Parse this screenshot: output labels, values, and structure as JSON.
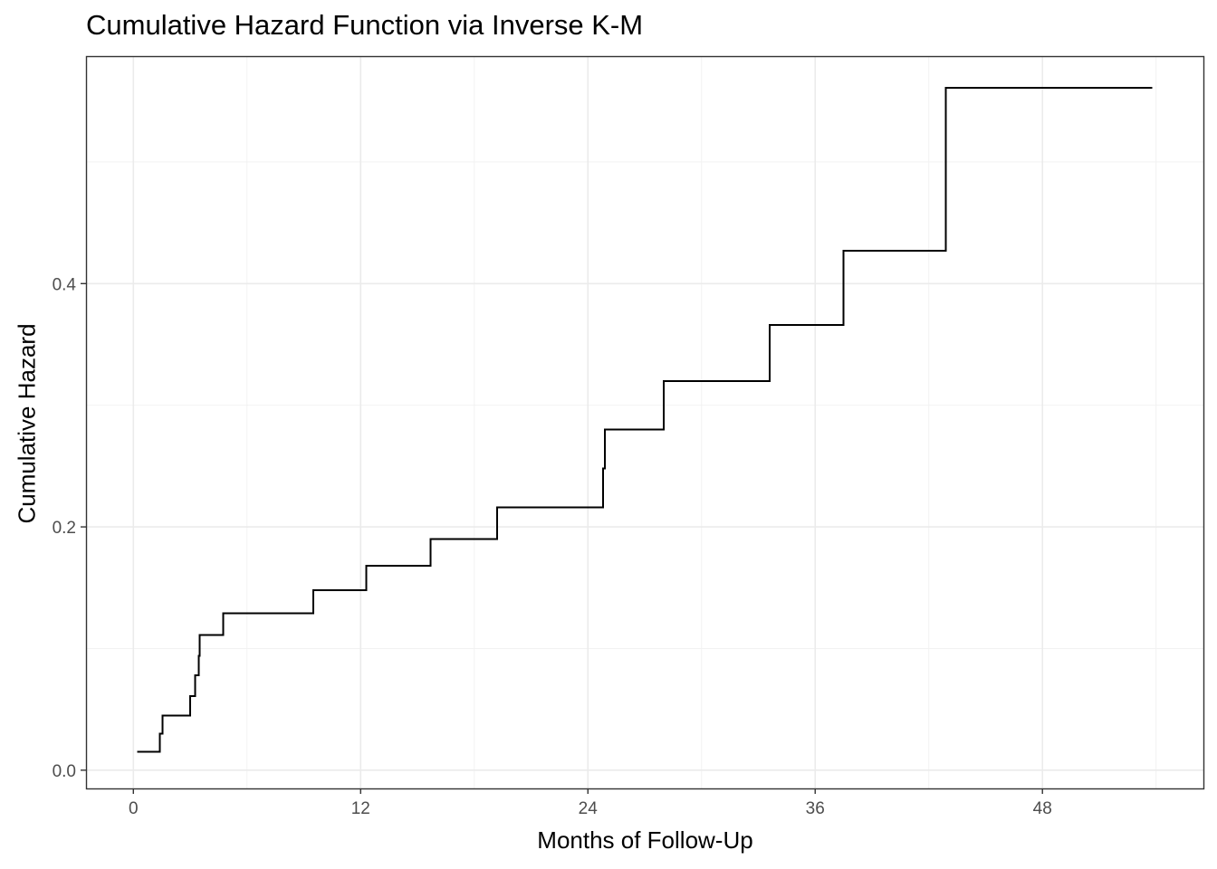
{
  "chart_data": {
    "type": "line",
    "title": "Cumulative Hazard Function via Inverse K-M",
    "xlabel": "Months of Follow-Up",
    "ylabel": "Cumulative Hazard",
    "xlim": [
      -2.5,
      56.5
    ],
    "ylim": [
      -0.015,
      0.587
    ],
    "x_ticks": [
      0,
      12,
      24,
      36,
      48
    ],
    "x_tick_labels": [
      "0",
      "12",
      "24",
      "36",
      "48"
    ],
    "y_ticks": [
      0.0,
      0.2,
      0.4
    ],
    "y_tick_labels": [
      "0.0",
      "0.2",
      "0.4"
    ],
    "grid": true,
    "series": [
      {
        "step": "post",
        "color": "#000000",
        "x": [
          0.2,
          1.4,
          1.55,
          3.0,
          3.25,
          3.45,
          3.5,
          4.75,
          9.5,
          12.3,
          15.7,
          19.2,
          24.8,
          24.9,
          28.0,
          33.6,
          37.5,
          42.9,
          53.8
        ],
        "y": [
          0.015,
          0.03,
          0.045,
          0.061,
          0.078,
          0.094,
          0.111,
          0.129,
          0.148,
          0.168,
          0.19,
          0.216,
          0.248,
          0.28,
          0.32,
          0.366,
          0.427,
          0.561,
          0.561
        ]
      }
    ]
  }
}
